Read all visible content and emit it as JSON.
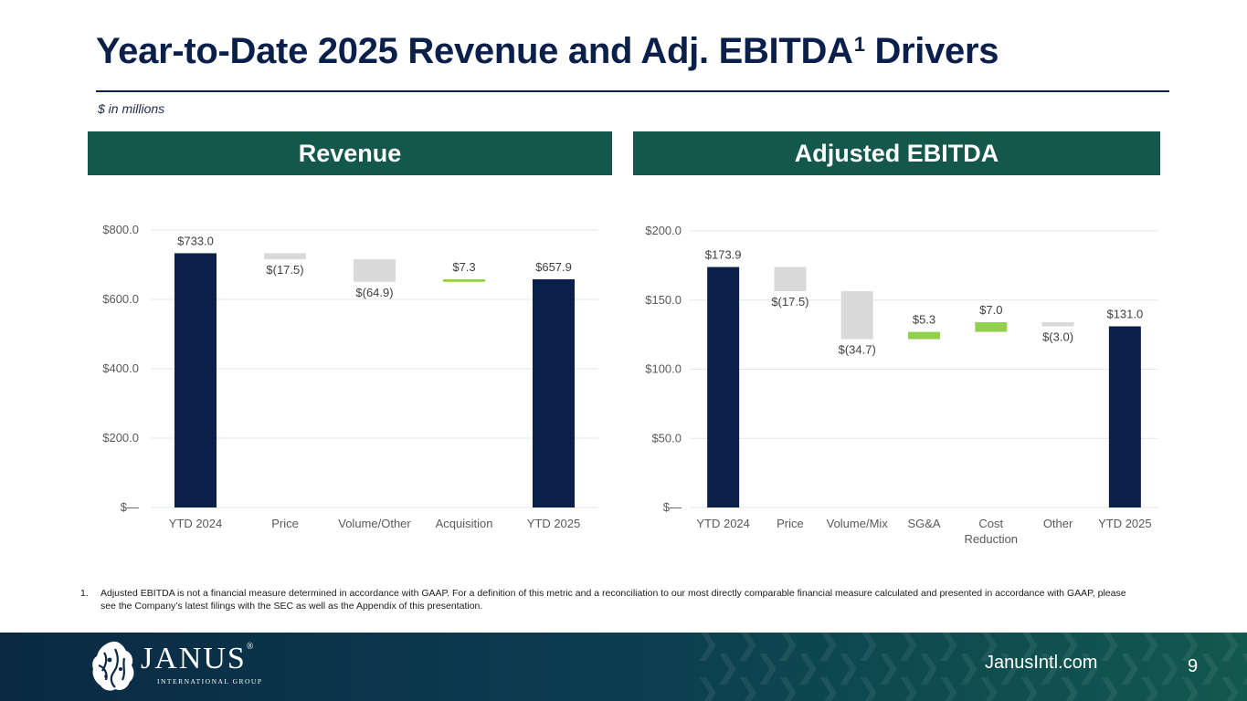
{
  "header": {
    "title": "Year-to-Date 2025 Revenue and Adj. EBITDA",
    "title_sup": "1",
    "title_suffix": " Drivers",
    "units": "$ in millions"
  },
  "panels": {
    "revenue_title": "Revenue",
    "ebitda_title": "Adjusted EBITDA"
  },
  "colors": {
    "total": "#0b1f4b",
    "decrease": "#d9d9d9",
    "increase": "#92d050",
    "gridline": "#e6e6e6",
    "header_bg": "#13584a"
  },
  "chart_data": [
    {
      "id": "revenue",
      "type": "bar",
      "subtype": "waterfall",
      "title": "Revenue",
      "categories": [
        "YTD 2024",
        "Price",
        "Volume/Other",
        "Acquisition",
        "YTD 2025"
      ],
      "values": [
        733.0,
        -17.5,
        -64.9,
        7.3,
        657.9
      ],
      "kinds": [
        "total",
        "decrease",
        "decrease",
        "increase",
        "total"
      ],
      "data_labels": [
        "$733.0",
        "$(17.5)",
        "$(64.9)",
        "$7.3",
        "$657.9"
      ],
      "y_ticks": [
        0,
        200,
        400,
        600,
        800
      ],
      "y_tick_labels": [
        "$—",
        "$200.0",
        "$400.0",
        "$600.0",
        "$800.0"
      ],
      "ylim": [
        0,
        800
      ],
      "grid": true
    },
    {
      "id": "ebitda",
      "type": "bar",
      "subtype": "waterfall",
      "title": "Adjusted EBITDA",
      "categories": [
        "YTD 2024",
        "Price",
        "Volume/Mix",
        "SG&A",
        "Cost Reduction",
        "Other",
        "YTD 2025"
      ],
      "category_lines": [
        [
          "YTD 2024"
        ],
        [
          "Price"
        ],
        [
          "Volume/Mix"
        ],
        [
          "SG&A"
        ],
        [
          "Cost",
          "Reduction"
        ],
        [
          "Other"
        ],
        [
          "YTD 2025"
        ]
      ],
      "values": [
        173.9,
        -17.5,
        -34.7,
        5.3,
        7.0,
        -3.0,
        131.0
      ],
      "kinds": [
        "total",
        "decrease",
        "decrease",
        "increase",
        "increase",
        "decrease",
        "total"
      ],
      "data_labels": [
        "$173.9",
        "$(17.5)",
        "$(34.7)",
        "$5.3",
        "$7.0",
        "$(3.0)",
        "$131.0"
      ],
      "y_ticks": [
        0,
        50,
        100,
        150,
        200
      ],
      "y_tick_labels": [
        "$—",
        "$50.0",
        "$100.0",
        "$150.0",
        "$200.0"
      ],
      "ylim": [
        0,
        200
      ],
      "grid": true
    }
  ],
  "footnote": {
    "number": "1.",
    "text": "Adjusted EBITDA is not a financial measure determined in accordance with GAAP. For a definition of this metric and a reconciliation to our most directly comparable financial measure calculated and presented in accordance with GAAP, please see the Company’s latest filings with the SEC as well as the Appendix of this presentation."
  },
  "footer": {
    "logo_text": "JANUS",
    "logo_subtext": "INTERNATIONAL GROUP",
    "website": "JanusIntl.com",
    "page_number": "9"
  }
}
